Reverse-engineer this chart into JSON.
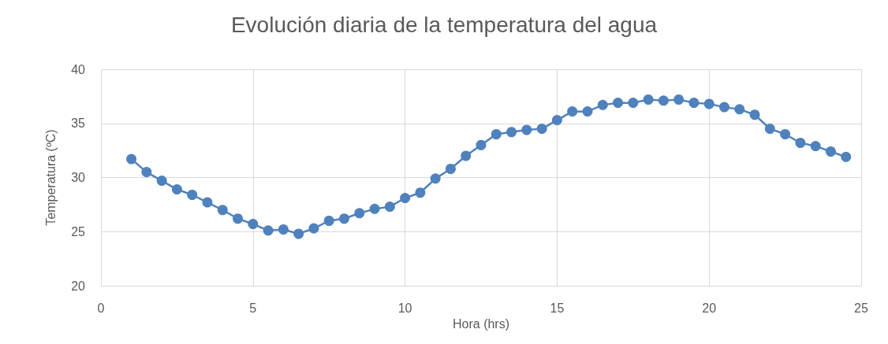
{
  "chart_data": {
    "type": "line",
    "title": "Evolución diaria de la temperatura del agua",
    "xlabel": "Hora (hrs)",
    "ylabel": "Temperatura (ºC)",
    "x": [
      1,
      1.5,
      2,
      2.5,
      3,
      3.5,
      4,
      4.5,
      5,
      5.5,
      6,
      6.5,
      7,
      7.5,
      8,
      8.5,
      9,
      9.5,
      10,
      10.5,
      11,
      11.5,
      12,
      12.5,
      13,
      13.5,
      14,
      14.5,
      15,
      15.5,
      16,
      16.5,
      17,
      17.5,
      18,
      18.5,
      19,
      19.5,
      20,
      20.5,
      21,
      21.5,
      22,
      22.5,
      23,
      23.5,
      24,
      24.5
    ],
    "series": [
      {
        "color": "#4f81bd",
        "values": [
          31.7,
          30.5,
          29.7,
          28.9,
          28.4,
          27.7,
          27.0,
          26.2,
          25.7,
          25.1,
          25.2,
          24.8,
          25.3,
          26.0,
          26.2,
          26.7,
          27.1,
          27.3,
          28.1,
          28.6,
          29.9,
          30.8,
          32.0,
          33.0,
          34.0,
          34.2,
          34.4,
          34.5,
          35.3,
          36.1,
          36.1,
          36.7,
          36.9,
          36.9,
          37.2,
          37.1,
          37.2,
          36.9,
          36.8,
          36.5,
          36.3,
          35.8,
          34.5,
          34.0,
          33.2,
          32.9,
          32.4,
          31.9
        ]
      }
    ],
    "xlim": [
      0,
      25
    ],
    "xticks": [
      0,
      5,
      10,
      15,
      20,
      25
    ],
    "ylim": [
      20,
      40
    ],
    "yticks": [
      20,
      25,
      30,
      35,
      40
    ],
    "grid": true,
    "marker": "circle",
    "line_style": "solid"
  }
}
